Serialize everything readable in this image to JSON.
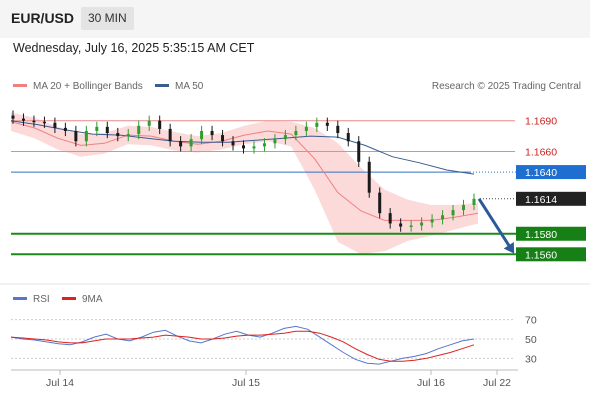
{
  "header": {
    "pair": "EUR/USD",
    "timeframe": "30 MIN"
  },
  "datetime": "Wednesday, July 16, 2025 5:35:15 AM CET",
  "legend": {
    "ma20": "MA 20 + Bollinger Bands",
    "ma50": "MA 50",
    "credit": "Research © 2025 Trading Central",
    "rsi": "RSI",
    "ma9": "9MA"
  },
  "colors": {
    "ma20": "#f08080",
    "bollinger_fill": "#fbd4d4",
    "ma50": "#3b5b92",
    "support": "#1a8a1a",
    "pivot": "#3070c0",
    "rsi": "#5577cc",
    "rsi_ma": "#dd2222",
    "candle_up": "#2f9e2f",
    "candle_down": "#1a1a1a",
    "arrow": "#2a5a9a"
  },
  "chart_data": {
    "type": "line",
    "symbol": "EUR/USD",
    "interval": "30 MIN",
    "price_axis": {
      "ylim": [
        1.1535,
        1.1715
      ],
      "scale": "linear"
    },
    "x_axis_labels": [
      "Jul 14",
      "Jul 15",
      "Jul 16",
      "Jul 22"
    ],
    "series": [
      {
        "name": "MA 20 + Bollinger Bands",
        "values": [
          1.1689,
          1.1683,
          1.1673,
          1.1666,
          1.1668,
          1.1676,
          1.1675,
          1.167,
          1.1667,
          1.167,
          1.1676,
          1.168,
          1.1677,
          1.1653,
          1.162,
          1.1602,
          1.1593,
          1.1593,
          1.1593,
          1.1596,
          1.16
        ]
      },
      {
        "name": "MA 50",
        "values": [
          1.169,
          1.1686,
          1.1681,
          1.1677,
          1.1676,
          1.1673,
          1.167,
          1.1669,
          1.1669,
          1.1671,
          1.1673,
          1.1675,
          1.1674,
          1.1666,
          1.1655,
          1.1649,
          1.1642,
          1.1638
        ]
      }
    ],
    "price_series_close": [
      1.1692,
      1.169,
      1.1689,
      1.1688,
      1.1683,
      1.168,
      1.167,
      1.168,
      1.1684,
      1.1678,
      1.1675,
      1.1677,
      1.1685,
      1.169,
      1.1682,
      1.167,
      1.1665,
      1.1672,
      1.168,
      1.1676,
      1.167,
      1.1666,
      1.1663,
      1.1665,
      1.1668,
      1.1672,
      1.1676,
      1.168,
      1.1684,
      1.1688,
      1.1685,
      1.1678,
      1.167,
      1.165,
      1.162,
      1.16,
      1.159,
      1.1587,
      1.1588,
      1.1591,
      1.1594,
      1.1598,
      1.1603,
      1.1608,
      1.1614
    ],
    "levels": [
      {
        "label": "1.1690",
        "value": 1.169,
        "kind": "resistance"
      },
      {
        "label": "1.1660",
        "value": 1.166,
        "kind": "resistance"
      },
      {
        "label": "1.1640",
        "value": 1.164,
        "kind": "pivot"
      },
      {
        "label": "1.1614",
        "value": 1.1614,
        "kind": "last-price"
      },
      {
        "label": "1.1580",
        "value": 1.158,
        "kind": "support"
      },
      {
        "label": "1.1560",
        "value": 1.156,
        "kind": "support"
      }
    ],
    "forecast": {
      "from": 1.1614,
      "to": 1.156,
      "direction": "down"
    },
    "rsi": {
      "ylim": [
        20,
        80
      ],
      "ticks": [
        "70",
        "50",
        "30"
      ],
      "values": [
        52,
        50,
        49,
        47,
        45,
        44,
        47,
        52,
        55,
        50,
        48,
        52,
        57,
        59,
        53,
        48,
        46,
        50,
        55,
        58,
        54,
        52,
        56,
        61,
        63,
        60,
        52,
        44,
        36,
        29,
        25,
        24,
        27,
        30,
        32,
        35,
        40,
        44,
        48,
        50
      ],
      "ma_values": [
        52,
        51,
        50,
        49,
        47,
        46,
        46,
        48,
        50,
        50,
        50,
        51,
        52,
        54,
        53,
        52,
        50,
        50,
        51,
        53,
        54,
        54,
        55,
        56,
        58,
        58,
        56,
        52,
        47,
        40,
        34,
        29,
        27,
        27,
        28,
        30,
        33,
        36,
        40,
        44
      ]
    }
  }
}
